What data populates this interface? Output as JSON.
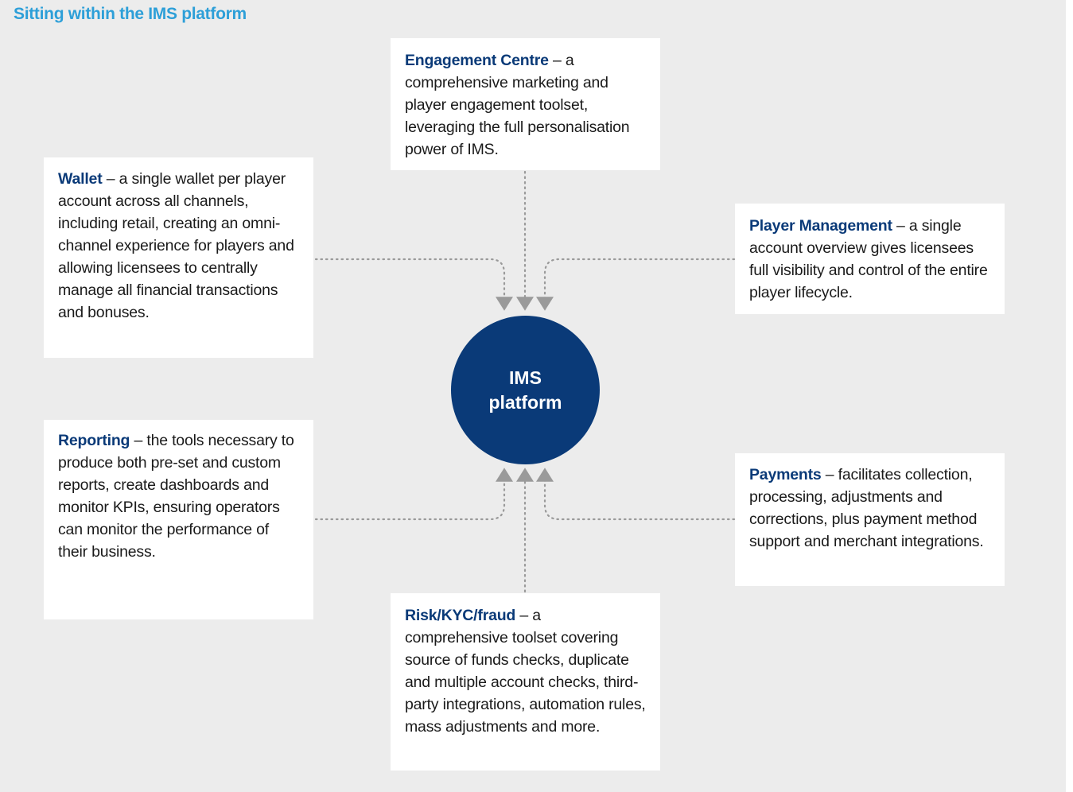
{
  "title": "Sitting within the IMS platform",
  "center": {
    "label": "IMS platform"
  },
  "components": [
    {
      "id": "engagement",
      "name": "Engagement Centre",
      "text": " – a comprehensive marketing and player engagement toolset, leveraging the full personalisation power of IMS."
    },
    {
      "id": "wallet",
      "name": "Wallet",
      "text": " – a single wallet per player account across all channels, including retail, creating an omni-channel experience for players and allowing licensees to centrally manage all financial transactions and bonuses."
    },
    {
      "id": "player",
      "name": "Player Management",
      "text": " – a single account overview gives licensees full visibility and control of the entire player lifecycle."
    },
    {
      "id": "reporting",
      "name": "Reporting",
      "text": " – the tools necessary to produce both pre-set and custom reports, create dashboards and monitor KPIs, ensuring operators can monitor the performance of their business."
    },
    {
      "id": "payments",
      "name": "Payments",
      "text": " – facilitates collection, processing, adjustments and corrections, plus payment method support and merchant integrations."
    },
    {
      "id": "risk",
      "name": "Risk/KYC/fraud",
      "text": " – a comprehensive toolset covering source of funds checks, duplicate and multiple account checks, third-party integrations, automation rules, mass adjustments and more."
    }
  ],
  "colors": {
    "background": "#ececec",
    "title": "#2d9fd8",
    "accent_navy": "#0a3a78",
    "connector": "#9a9a9a"
  }
}
